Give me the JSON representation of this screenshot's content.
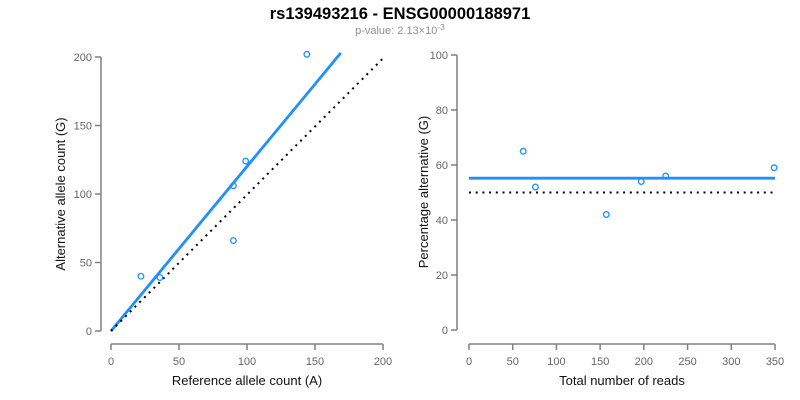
{
  "header": {
    "title": "rs139493216 - ENSG00000188971",
    "pvalue_prefix": "p-value: 2.13×10",
    "pvalue_exponent": "-3"
  },
  "colors": {
    "accent_blue": "#1E90FF",
    "line_black": "#000000",
    "axis_gray": "#808080",
    "tick_label_gray": "#666666",
    "subtitle_gray": "#8f8f8f",
    "axis_title_color": "#111111",
    "background": "#ffffff"
  },
  "chart_data": [
    {
      "type": "scatter",
      "xlabel": "Reference allele count (A)",
      "ylabel": "Alternative allele count (G)",
      "xlim": [
        0,
        200
      ],
      "ylim": [
        0,
        200
      ],
      "xticks": [
        0,
        50,
        100,
        150,
        200
      ],
      "yticks": [
        0,
        50,
        100,
        150,
        200
      ],
      "grid": false,
      "legend": false,
      "points": [
        [
          22,
          40
        ],
        [
          36,
          39
        ],
        [
          90,
          66
        ],
        [
          90,
          106
        ],
        [
          99,
          124
        ],
        [
          144,
          202
        ]
      ],
      "point_color": "#1E90FF",
      "lines": [
        {
          "name": "fitted-line",
          "style": "solid",
          "color": "#1E90FF",
          "width": 2.8,
          "from": [
            0,
            0
          ],
          "to": [
            169,
            203
          ]
        },
        {
          "name": "identity-line",
          "style": "dotted",
          "color": "#000000",
          "width": 2,
          "from": [
            0,
            0
          ],
          "to": [
            201,
            200
          ]
        }
      ]
    },
    {
      "type": "scatter",
      "xlabel": "Total number of reads",
      "ylabel": "Percentage alternative (G)",
      "xlim": [
        0,
        350
      ],
      "ylim": [
        0,
        100
      ],
      "xticks": [
        0,
        50,
        100,
        150,
        200,
        250,
        300,
        350
      ],
      "yticks": [
        0,
        20,
        40,
        60,
        80,
        100
      ],
      "grid": false,
      "legend": false,
      "points": [
        [
          62,
          65
        ],
        [
          76,
          52
        ],
        [
          157,
          42
        ],
        [
          197,
          54
        ],
        [
          225,
          56
        ],
        [
          349,
          59
        ]
      ],
      "point_color": "#1E90FF",
      "lines": [
        {
          "name": "mean-percentage-line",
          "style": "solid",
          "color": "#1E90FF",
          "width": 2.8,
          "from": [
            0,
            55.2
          ],
          "to": [
            350,
            55.2
          ]
        },
        {
          "name": "expected-50-percent-line",
          "style": "dotted",
          "color": "#000000",
          "width": 2,
          "from": [
            0,
            50
          ],
          "to": [
            350,
            50
          ]
        }
      ]
    }
  ]
}
